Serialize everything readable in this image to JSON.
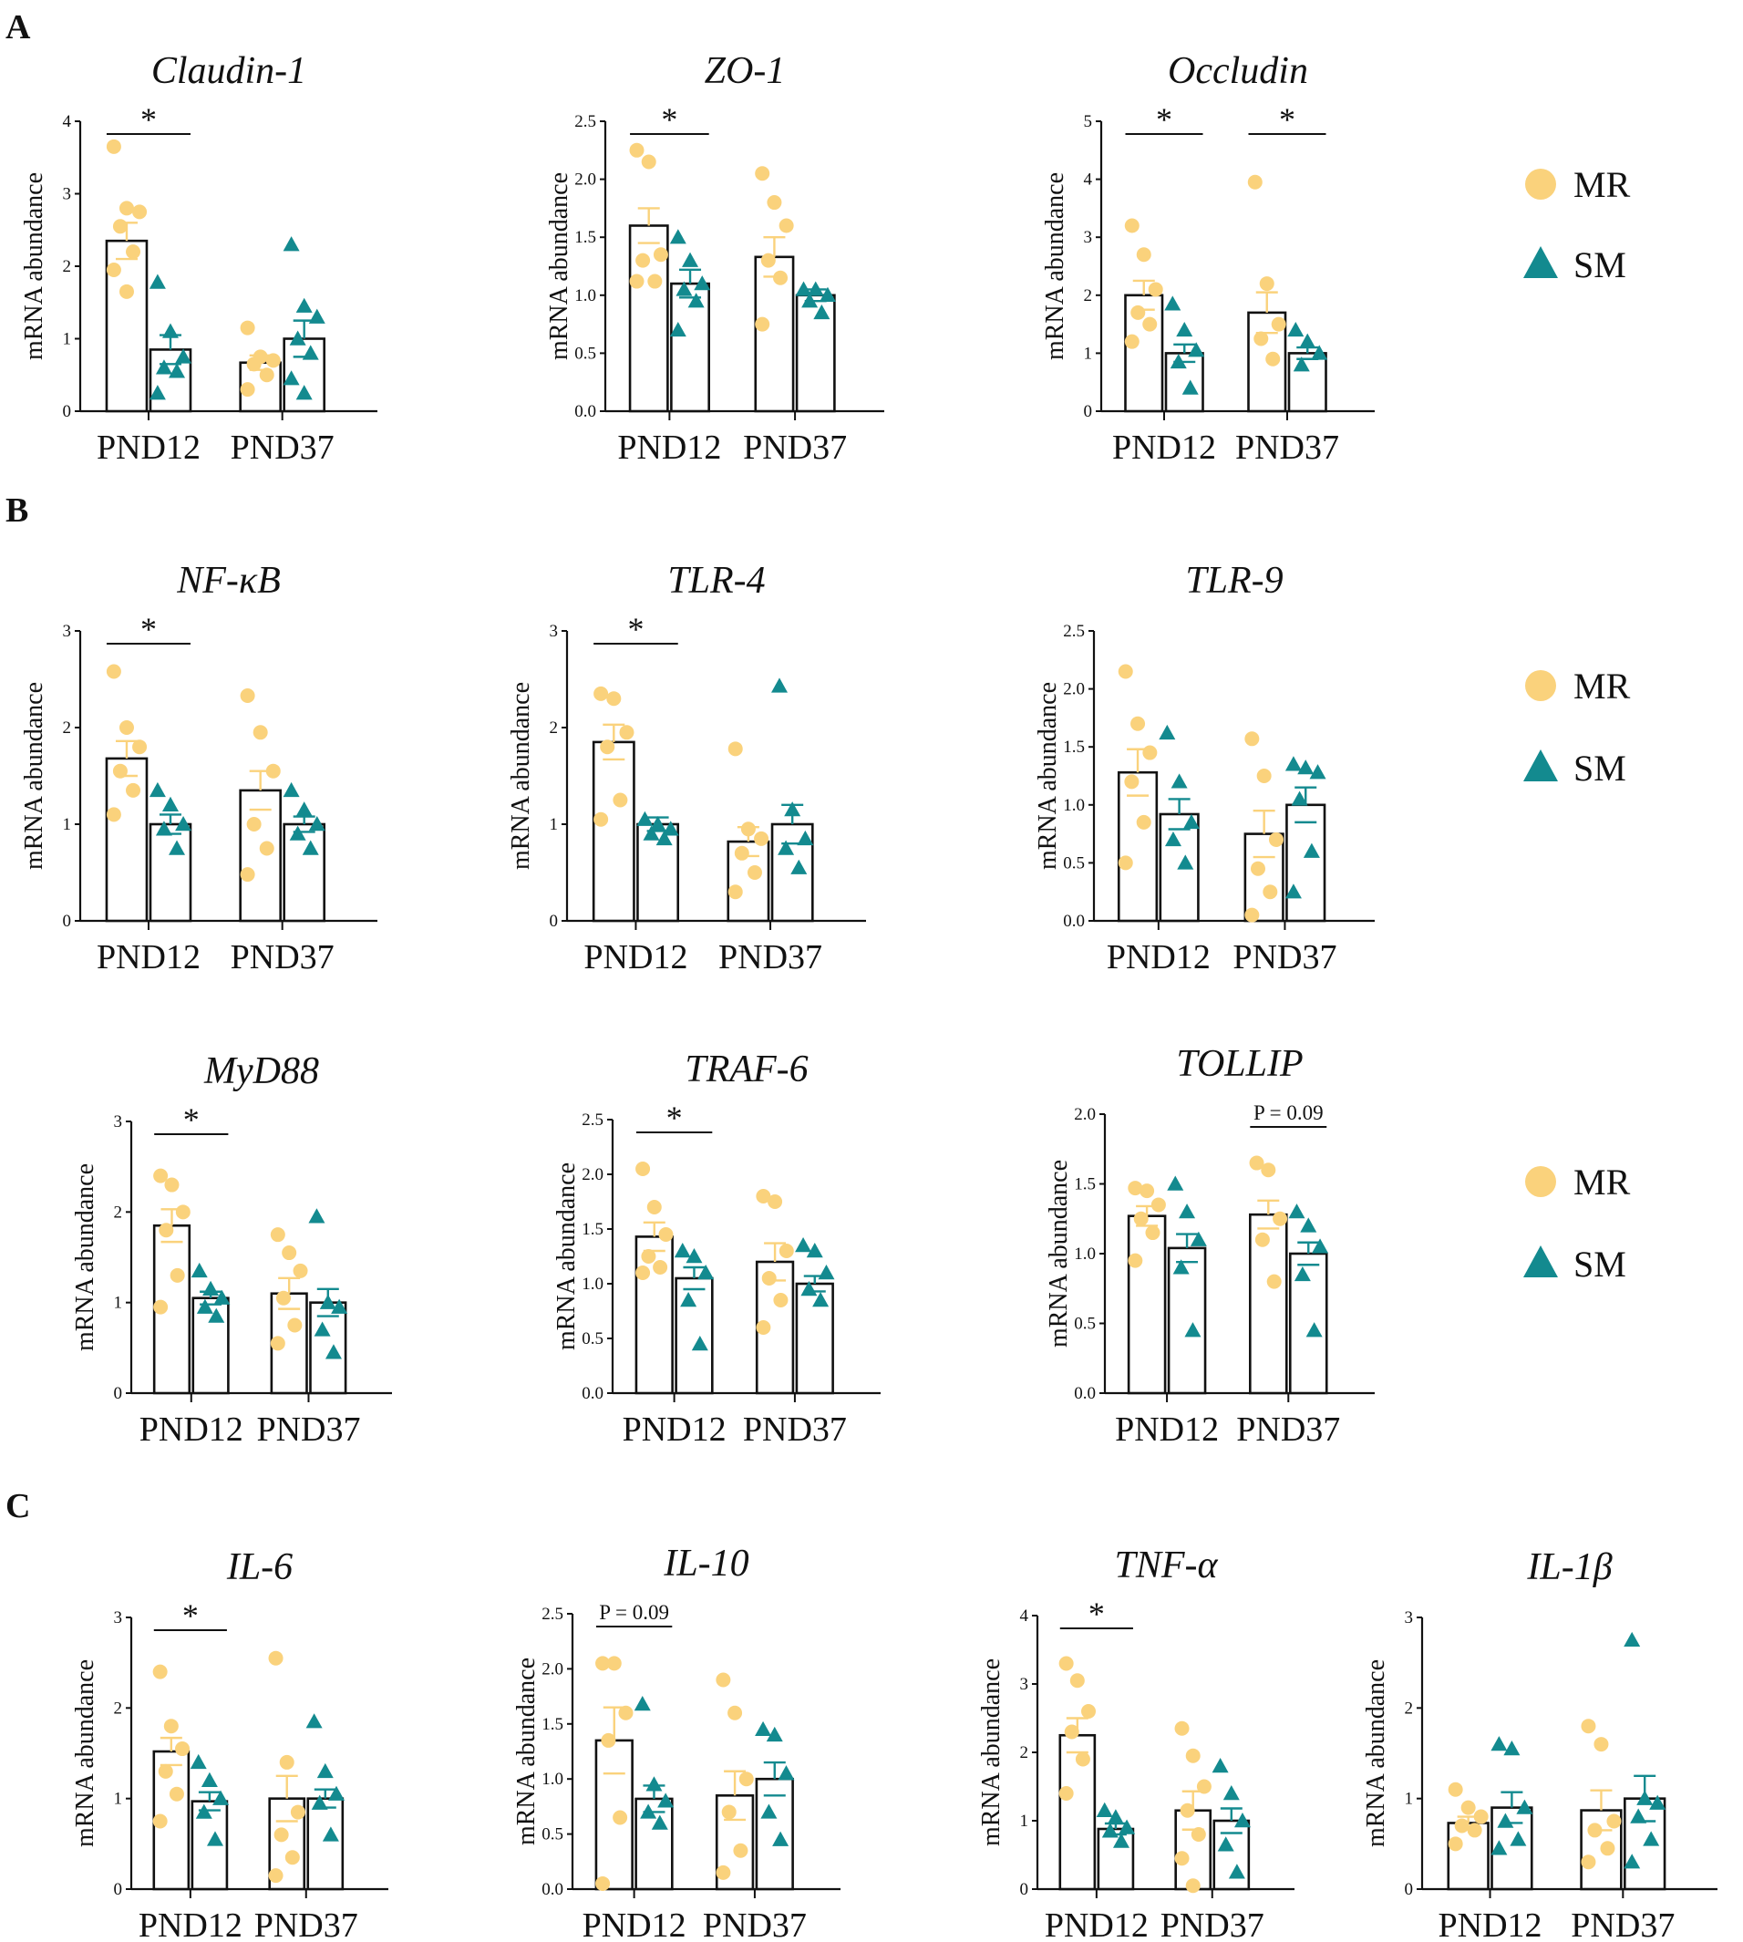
{
  "colors": {
    "mr": "#FAD27C",
    "sm": "#138A8F",
    "ink": "#111111"
  },
  "legend": {
    "mr_label": "MR",
    "sm_label": "SM",
    "mr_icon": "circle-icon",
    "sm_icon": "triangle-icon"
  },
  "panels": [
    "A",
    "B",
    "C"
  ],
  "ylabel": "mRNA abundance",
  "groups": [
    "PND12",
    "PND37"
  ],
  "chart_data": [
    {
      "type": "bar",
      "title": "Claudin-1",
      "ylim": [
        0,
        4
      ],
      "ticks": [
        "0",
        "1",
        "2",
        "3",
        "4"
      ],
      "categories": [
        "PND12",
        "PND37"
      ],
      "series": [
        {
          "name": "MR",
          "means": [
            2.35,
            0.67
          ],
          "sem": [
            0.25,
            0.1
          ],
          "points": [
            [
              3.65,
              2.8,
              2.75,
              2.55,
              2.2,
              1.95,
              1.65
            ],
            [
              1.15,
              0.75,
              0.7,
              0.65,
              0.5,
              0.3
            ]
          ]
        },
        {
          "name": "SM",
          "means": [
            0.85,
            1.0
          ],
          "sem": [
            0.2,
            0.25
          ],
          "points": [
            [
              1.78,
              1.1,
              0.75,
              0.6,
              0.55,
              0.25
            ],
            [
              2.3,
              1.45,
              1.3,
              1.0,
              0.8,
              0.45,
              0.25
            ]
          ]
        }
      ],
      "annotations": [
        {
          "group": 0,
          "text": "*"
        }
      ]
    },
    {
      "type": "bar",
      "title": "ZO-1",
      "ylim": [
        0,
        2.5
      ],
      "ticks": [
        "0.0",
        "0.5",
        "1.0",
        "1.5",
        "2.0",
        "2.5"
      ],
      "categories": [
        "PND12",
        "PND37"
      ],
      "series": [
        {
          "name": "MR",
          "means": [
            1.6,
            1.33
          ],
          "sem": [
            0.15,
            0.17
          ],
          "points": [
            [
              2.25,
              2.15,
              1.35,
              1.3,
              1.12,
              1.12
            ],
            [
              2.05,
              1.8,
              1.6,
              1.3,
              1.15,
              0.75
            ]
          ]
        },
        {
          "name": "SM",
          "means": [
            1.1,
            1.0
          ],
          "sem": [
            0.12,
            0.05
          ],
          "points": [
            [
              1.5,
              1.3,
              1.1,
              1.05,
              0.95,
              0.7
            ],
            [
              1.05,
              1.05,
              1.0,
              0.95,
              0.85
            ]
          ]
        }
      ],
      "annotations": [
        {
          "group": 0,
          "text": "*"
        }
      ]
    },
    {
      "type": "bar",
      "title": "Occludin",
      "ylim": [
        0,
        5
      ],
      "ticks": [
        "0",
        "1",
        "2",
        "3",
        "4",
        "5"
      ],
      "categories": [
        "PND12",
        "PND37"
      ],
      "series": [
        {
          "name": "MR",
          "means": [
            2.0,
            1.7
          ],
          "sem": [
            0.25,
            0.35
          ],
          "points": [
            [
              3.2,
              2.7,
              2.1,
              1.7,
              1.5,
              1.2
            ],
            [
              3.95,
              2.2,
              1.5,
              1.25,
              0.9
            ]
          ]
        },
        {
          "name": "SM",
          "means": [
            1.0,
            1.0
          ],
          "sem": [
            0.15,
            0.1
          ],
          "points": [
            [
              1.85,
              1.4,
              1.05,
              0.85,
              0.4
            ],
            [
              1.4,
              1.2,
              1.0,
              0.8
            ]
          ]
        }
      ],
      "annotations": [
        {
          "group": 0,
          "text": "*"
        },
        {
          "group": 1,
          "text": "*"
        }
      ]
    },
    {
      "type": "bar",
      "title": "NF-κB",
      "ylim": [
        0,
        3
      ],
      "ticks": [
        "0",
        "1",
        "2",
        "3"
      ],
      "categories": [
        "PND12",
        "PND37"
      ],
      "series": [
        {
          "name": "MR",
          "means": [
            1.68,
            1.35
          ],
          "sem": [
            0.18,
            0.2
          ],
          "points": [
            [
              2.58,
              2.0,
              1.8,
              1.55,
              1.35,
              1.1
            ],
            [
              2.33,
              1.95,
              1.55,
              1.0,
              0.75,
              0.48
            ]
          ]
        },
        {
          "name": "SM",
          "means": [
            1.0,
            1.0
          ],
          "sem": [
            0.1,
            0.08
          ],
          "points": [
            [
              1.35,
              1.2,
              1.0,
              0.95,
              0.75
            ],
            [
              1.35,
              1.15,
              1.0,
              0.9,
              0.75
            ]
          ]
        }
      ],
      "annotations": [
        {
          "group": 0,
          "text": "*"
        }
      ]
    },
    {
      "type": "bar",
      "title": "TLR-4",
      "ylim": [
        0,
        3
      ],
      "ticks": [
        "0",
        "1",
        "2",
        "3"
      ],
      "categories": [
        "PND12",
        "PND37"
      ],
      "series": [
        {
          "name": "MR",
          "means": [
            1.85,
            0.82
          ],
          "sem": [
            0.18,
            0.15
          ],
          "points": [
            [
              2.35,
              2.3,
              1.95,
              1.8,
              1.25,
              1.05
            ],
            [
              1.78,
              0.95,
              0.85,
              0.7,
              0.5,
              0.3
            ]
          ]
        },
        {
          "name": "SM",
          "means": [
            1.0,
            1.0
          ],
          "sem": [
            0.07,
            0.2
          ],
          "points": [
            [
              1.05,
              1.0,
              0.95,
              0.9,
              0.85
            ],
            [
              2.43,
              1.15,
              0.85,
              0.75,
              0.55
            ]
          ]
        }
      ],
      "annotations": [
        {
          "group": 0,
          "text": "*"
        }
      ]
    },
    {
      "type": "bar",
      "title": "TLR-9",
      "ylim": [
        0,
        2.5
      ],
      "ticks": [
        "0.0",
        "0.5",
        "1.0",
        "1.5",
        "2.0",
        "2.5"
      ],
      "categories": [
        "PND12",
        "PND37"
      ],
      "series": [
        {
          "name": "MR",
          "means": [
            1.28,
            0.75
          ],
          "sem": [
            0.2,
            0.2
          ],
          "points": [
            [
              2.15,
              1.7,
              1.45,
              1.2,
              0.85,
              0.5
            ],
            [
              1.57,
              1.25,
              0.7,
              0.45,
              0.25,
              0.05
            ]
          ]
        },
        {
          "name": "SM",
          "means": [
            0.92,
            1.0
          ],
          "sem": [
            0.13,
            0.15
          ],
          "points": [
            [
              1.62,
              1.2,
              0.85,
              0.7,
              0.5
            ],
            [
              1.35,
              1.32,
              1.28,
              1.05,
              0.6,
              0.25
            ]
          ]
        }
      ],
      "annotations": []
    },
    {
      "type": "bar",
      "title": "MyD88",
      "ylim": [
        0,
        3
      ],
      "ticks": [
        "0",
        "1",
        "2",
        "3"
      ],
      "categories": [
        "PND12",
        "PND37"
      ],
      "series": [
        {
          "name": "MR",
          "means": [
            1.85,
            1.1
          ],
          "sem": [
            0.18,
            0.17
          ],
          "points": [
            [
              2.4,
              2.3,
              2.0,
              1.8,
              1.3,
              0.95
            ],
            [
              1.75,
              1.55,
              1.35,
              1.05,
              0.75,
              0.55
            ]
          ]
        },
        {
          "name": "SM",
          "means": [
            1.05,
            1.0
          ],
          "sem": [
            0.07,
            0.15
          ],
          "points": [
            [
              1.35,
              1.15,
              1.05,
              0.95,
              0.85
            ],
            [
              1.95,
              1.0,
              0.95,
              0.7,
              0.45
            ]
          ]
        }
      ],
      "annotations": [
        {
          "group": 0,
          "text": "*"
        }
      ]
    },
    {
      "type": "bar",
      "title": "TRAF-6",
      "ylim": [
        0,
        2.5
      ],
      "ticks": [
        "0.0",
        "0.5",
        "1.0",
        "1.5",
        "2.0",
        "2.5"
      ],
      "categories": [
        "PND12",
        "PND37"
      ],
      "series": [
        {
          "name": "MR",
          "means": [
            1.43,
            1.2
          ],
          "sem": [
            0.13,
            0.17
          ],
          "points": [
            [
              2.05,
              1.7,
              1.45,
              1.25,
              1.15,
              1.1
            ],
            [
              1.8,
              1.75,
              1.3,
              1.05,
              0.85,
              0.6
            ]
          ]
        },
        {
          "name": "SM",
          "means": [
            1.05,
            1.0
          ],
          "sem": [
            0.1,
            0.07
          ],
          "points": [
            [
              1.3,
              1.25,
              1.1,
              0.85,
              0.45
            ],
            [
              1.35,
              1.3,
              1.1,
              0.95,
              0.85
            ]
          ]
        }
      ],
      "annotations": [
        {
          "group": 0,
          "text": "*"
        }
      ]
    },
    {
      "type": "bar",
      "title": "TOLLIP",
      "ylim": [
        0,
        2.0
      ],
      "ticks": [
        "0.0",
        "0.5",
        "1.0",
        "1.5",
        "2.0"
      ],
      "categories": [
        "PND12",
        "PND37"
      ],
      "series": [
        {
          "name": "MR",
          "means": [
            1.27,
            1.28
          ],
          "sem": [
            0.07,
            0.1
          ],
          "points": [
            [
              1.47,
              1.45,
              1.35,
              1.25,
              1.15,
              0.95
            ],
            [
              1.65,
              1.6,
              1.25,
              1.1,
              0.8
            ]
          ]
        },
        {
          "name": "SM",
          "means": [
            1.04,
            1.0
          ],
          "sem": [
            0.1,
            0.08
          ],
          "points": [
            [
              1.5,
              1.3,
              1.1,
              0.9,
              0.45
            ],
            [
              1.3,
              1.2,
              1.05,
              0.85,
              0.45
            ]
          ]
        }
      ],
      "annotations": [
        {
          "group": 1,
          "text": "P = 0.09"
        }
      ]
    },
    {
      "type": "bar",
      "title": "IL-6",
      "ylim": [
        0,
        3
      ],
      "ticks": [
        "0",
        "1",
        "2",
        "3"
      ],
      "categories": [
        "PND12",
        "PND37"
      ],
      "series": [
        {
          "name": "MR",
          "means": [
            1.52,
            1.0
          ],
          "sem": [
            0.15,
            0.25
          ],
          "points": [
            [
              2.4,
              1.8,
              1.55,
              1.3,
              1.05,
              0.75
            ],
            [
              2.55,
              1.4,
              0.85,
              0.6,
              0.35,
              0.15
            ]
          ]
        },
        {
          "name": "SM",
          "means": [
            0.97,
            1.0
          ],
          "sem": [
            0.1,
            0.1
          ],
          "points": [
            [
              1.4,
              1.2,
              1.0,
              0.85,
              0.55
            ],
            [
              1.85,
              1.3,
              1.05,
              0.95,
              0.6
            ]
          ]
        }
      ],
      "annotations": [
        {
          "group": 0,
          "text": "*"
        }
      ]
    },
    {
      "type": "bar",
      "title": "IL-10",
      "ylim": [
        0,
        2.5
      ],
      "ticks": [
        "0.0",
        "0.5",
        "1.0",
        "1.5",
        "2.0",
        "2.5"
      ],
      "categories": [
        "PND12",
        "PND37"
      ],
      "series": [
        {
          "name": "MR",
          "means": [
            1.35,
            0.85
          ],
          "sem": [
            0.3,
            0.22
          ],
          "points": [
            [
              2.05,
              2.05,
              1.6,
              1.35,
              0.65,
              0.05
            ],
            [
              1.9,
              1.6,
              1.0,
              0.7,
              0.35,
              0.15
            ]
          ]
        },
        {
          "name": "SM",
          "means": [
            0.82,
            1.0
          ],
          "sem": [
            0.12,
            0.15
          ],
          "points": [
            [
              1.68,
              0.95,
              0.8,
              0.7,
              0.6
            ],
            [
              1.45,
              1.4,
              1.05,
              0.7,
              0.45
            ]
          ]
        }
      ],
      "annotations": [
        {
          "group": 0,
          "text": "P = 0.09"
        }
      ]
    },
    {
      "type": "bar",
      "title": "TNF-α",
      "ylim": [
        0,
        4
      ],
      "ticks": [
        "0",
        "1",
        "2",
        "3",
        "4"
      ],
      "categories": [
        "PND12",
        "PND37"
      ],
      "series": [
        {
          "name": "MR",
          "means": [
            2.25,
            1.15
          ],
          "sem": [
            0.25,
            0.28
          ],
          "points": [
            [
              3.3,
              3.05,
              2.6,
              2.3,
              1.9,
              1.4
            ],
            [
              2.35,
              1.95,
              1.5,
              1.15,
              0.8,
              0.45,
              0.05
            ]
          ]
        },
        {
          "name": "SM",
          "means": [
            0.88,
            1.0
          ],
          "sem": [
            0.08,
            0.18
          ],
          "points": [
            [
              1.15,
              1.05,
              0.9,
              0.85,
              0.7
            ],
            [
              1.8,
              1.4,
              1.0,
              0.65,
              0.25
            ]
          ]
        }
      ],
      "annotations": [
        {
          "group": 0,
          "text": "*"
        }
      ]
    },
    {
      "type": "bar",
      "title": "IL-1β",
      "ylim": [
        0,
        3
      ],
      "ticks": [
        "0",
        "1",
        "2",
        "3"
      ],
      "categories": [
        "PND12",
        "PND37"
      ],
      "series": [
        {
          "name": "MR",
          "means": [
            0.73,
            0.87
          ],
          "sem": [
            0.07,
            0.22
          ],
          "points": [
            [
              1.1,
              0.9,
              0.8,
              0.7,
              0.65,
              0.5
            ],
            [
              1.8,
              1.6,
              0.75,
              0.65,
              0.45,
              0.3
            ]
          ]
        },
        {
          "name": "SM",
          "means": [
            0.9,
            1.0
          ],
          "sem": [
            0.17,
            0.25
          ],
          "points": [
            [
              1.6,
              1.55,
              0.9,
              0.75,
              0.55,
              0.45
            ],
            [
              2.75,
              1.0,
              0.95,
              0.8,
              0.55,
              0.3
            ]
          ]
        }
      ],
      "annotations": []
    }
  ]
}
